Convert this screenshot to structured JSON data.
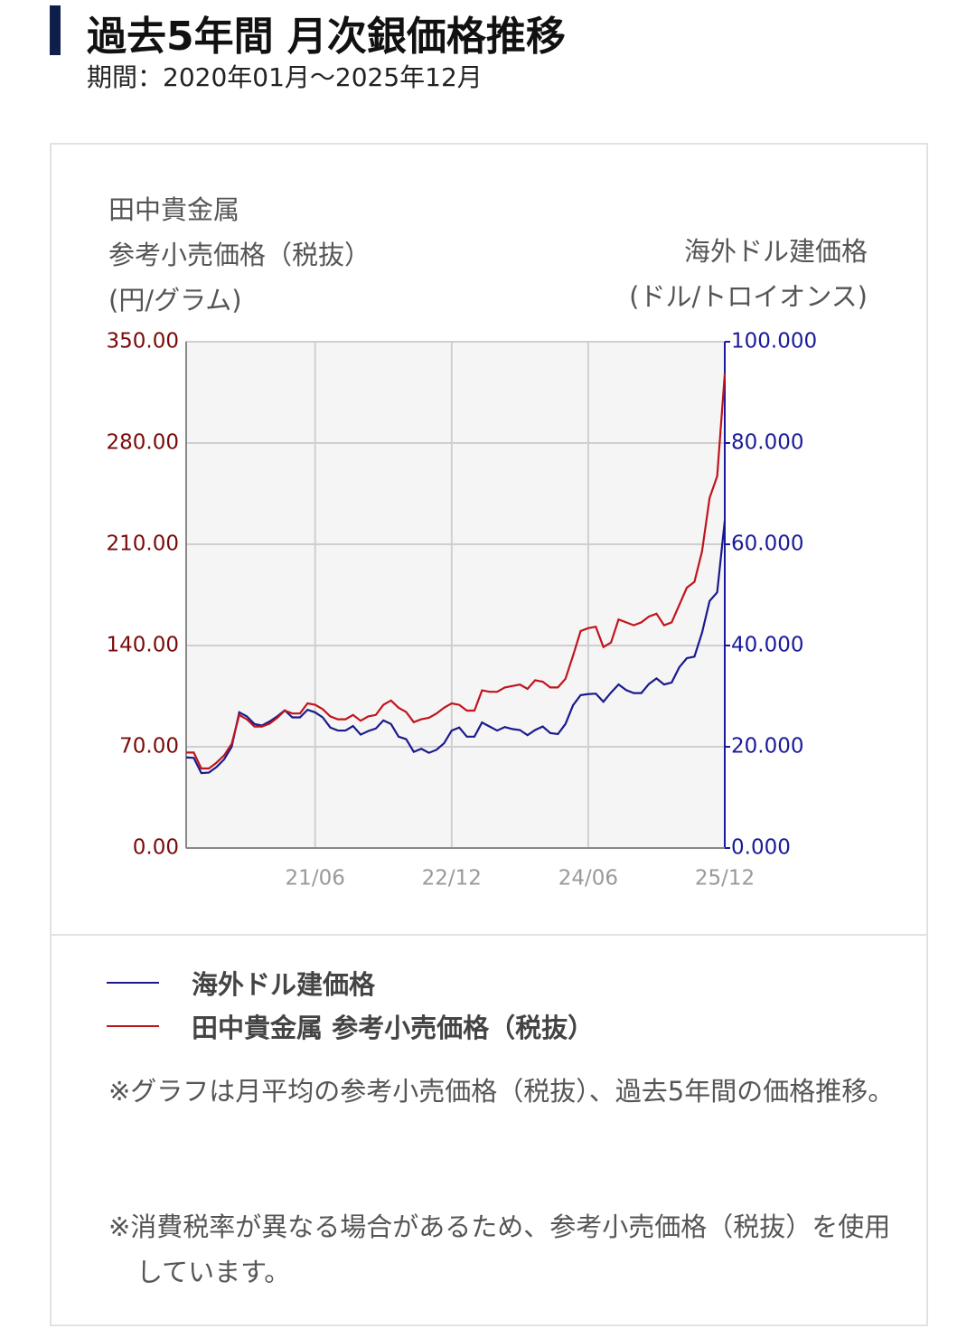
{
  "title": "過去5年間 月次銀価格推移",
  "subtitle": "期間：2020年01月～2025年12月",
  "chart_data": {
    "type": "line",
    "y_label_lines": [
      "田中貴金属",
      "参考小売価格（税抜）",
      "(円/グラム)"
    ],
    "y2_label_lines": [
      "海外ドル建価格",
      "(ドル/トロイオンス)"
    ],
    "categories": [
      null,
      null,
      null,
      null,
      null,
      null,
      null,
      null,
      null,
      null,
      null,
      null,
      null,
      null,
      null,
      null,
      null,
      "21/06",
      null,
      null,
      null,
      null,
      null,
      null,
      null,
      null,
      null,
      null,
      null,
      null,
      null,
      null,
      null,
      null,
      null,
      "22/12",
      null,
      null,
      null,
      null,
      null,
      null,
      null,
      null,
      null,
      null,
      null,
      null,
      null,
      null,
      null,
      null,
      null,
      "24/06",
      null,
      null,
      null,
      null,
      null,
      null,
      null,
      null,
      null,
      null,
      null,
      null,
      null,
      null,
      null,
      null,
      null,
      "25/12"
    ],
    "ylim": [
      0,
      350
    ],
    "yticks": [
      {
        "value": 0,
        "label": "0.00"
      },
      {
        "value": 70,
        "label": "70.00"
      },
      {
        "value": 140,
        "label": "140.00"
      },
      {
        "value": 210,
        "label": "210.00"
      },
      {
        "value": 280,
        "label": "280.00"
      },
      {
        "value": 350,
        "label": "350.00"
      }
    ],
    "y2lim": [
      0,
      100
    ],
    "y2ticks": [
      {
        "value": 0,
        "label": "0.000"
      },
      {
        "value": 20,
        "label": "20.000"
      },
      {
        "value": 40,
        "label": "40.000"
      },
      {
        "value": 60,
        "label": "60.000"
      },
      {
        "value": 80,
        "label": "80.000"
      },
      {
        "value": 100,
        "label": "100.000"
      }
    ],
    "y_tick_color": "#7a0a0a",
    "y2_tick_color": "#1a1a9a",
    "grid": true,
    "series": [
      {
        "name": "海外ドル建価格",
        "color": "#1a1a8c",
        "axis": "y2",
        "values": [
          17.9,
          17.8,
          14.8,
          14.9,
          16,
          17.5,
          20,
          26.8,
          26,
          24.5,
          24.2,
          25,
          26,
          27.2,
          25.8,
          25.8,
          27.3,
          26.8,
          25.8,
          23.8,
          23.2,
          23.2,
          24.1,
          22.4,
          23.1,
          23.6,
          25.2,
          24.5,
          22,
          21.5,
          19,
          19.6,
          18.8,
          19.4,
          20.7,
          23.2,
          23.8,
          22,
          22,
          24.8,
          24,
          23.2,
          23.9,
          23.5,
          23.3,
          22.3,
          23.3,
          24,
          22.7,
          22.5,
          24.5,
          28.2,
          30.2,
          30.4,
          30.5,
          28.9,
          30.7,
          32.3,
          31.2,
          30.6,
          30.6,
          32.4,
          33.5,
          32.3,
          32.7,
          35.7,
          37.5,
          37.8,
          42.5,
          48.8,
          50.5,
          64.7
        ]
      },
      {
        "name": "田中貴金属 参考小売価格（税抜）",
        "color": "#c0141c",
        "axis": "y",
        "values": [
          66,
          66,
          55,
          55,
          59,
          64,
          72,
          92,
          89,
          84,
          84,
          86,
          90,
          95,
          93,
          93,
          100,
          99,
          96,
          91,
          89,
          89,
          92,
          88,
          91,
          92,
          99,
          102,
          97,
          94,
          87,
          89,
          90,
          93,
          97,
          100,
          99,
          95,
          95,
          109,
          108,
          108,
          111,
          112,
          113,
          110,
          116,
          115,
          111,
          111,
          117,
          133,
          150,
          152,
          153,
          139,
          142,
          158,
          156,
          154,
          156,
          160,
          162,
          154,
          156,
          168,
          180,
          184,
          205,
          242,
          257,
          328
        ]
      }
    ]
  },
  "notes": [
    "※グラフは月平均の参考小売価格（税抜）、過去5年間の価格推移。",
    "※消費税率が異なる場合があるため、参考小売価格（税抜）を使用しています。"
  ]
}
